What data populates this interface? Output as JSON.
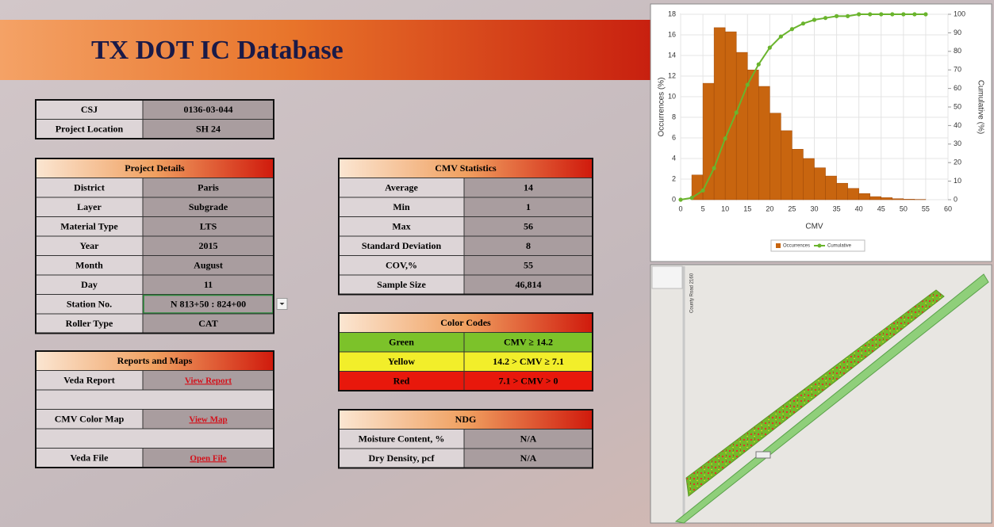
{
  "header": {
    "title": "TX DOT IC Database"
  },
  "project": {
    "rows": [
      [
        "CSJ",
        "0136-03-044"
      ],
      [
        "Project Location",
        "SH 24"
      ]
    ]
  },
  "project_details": {
    "title": "Project Details",
    "rows": [
      [
        "District",
        "Paris"
      ],
      [
        "Layer",
        "Subgrade"
      ],
      [
        "Material Type",
        "LTS"
      ],
      [
        "Year",
        "2015"
      ],
      [
        "Month",
        "August"
      ],
      [
        "Day",
        "11"
      ],
      [
        "Station No.",
        "N 813+50 : 824+00"
      ],
      [
        "Roller Type",
        "CAT"
      ]
    ]
  },
  "reports_and_maps": {
    "title": "Reports and Maps",
    "rows": [
      [
        "Veda Report",
        "View Report"
      ],
      [
        "CMV Color Map",
        "View Map"
      ],
      [
        "Veda File",
        "Open File"
      ]
    ]
  },
  "cmv_statistics": {
    "title": "CMV Statistics",
    "rows": [
      [
        "Average",
        "14"
      ],
      [
        "Min",
        "1"
      ],
      [
        "Max",
        "56"
      ],
      [
        "Standard Deviation",
        "8"
      ],
      [
        "COV,%",
        "55"
      ],
      [
        "Sample Size",
        "46,814"
      ]
    ]
  },
  "color_codes": {
    "title": "Color Codes",
    "rows": [
      [
        "Green",
        "CMV ≥ 14.2"
      ],
      [
        "Yellow",
        "14.2 > CMV ≥ 7.1"
      ],
      [
        "Red",
        "7.1 > CMV > 0"
      ]
    ],
    "colors": [
      "#7cc22a",
      "#f2ee2a",
      "#e8180c"
    ]
  },
  "ndg": {
    "title": "NDG",
    "rows": [
      [
        "Moisture Content, %",
        "N/A"
      ],
      [
        "Dry Density, pcf",
        "N/A"
      ]
    ]
  },
  "chart_data": {
    "type": "histogram",
    "x_label": "CMV",
    "y_label": "Occurrences (%)",
    "y2_label": "Cumulative (%)",
    "bins": [
      2.5,
      5,
      7.5,
      10,
      12.5,
      15,
      17.5,
      20,
      22.5,
      25,
      27.5,
      30,
      32.5,
      35,
      37.5,
      40,
      42.5,
      45,
      47.5,
      50,
      52.5,
      55
    ],
    "series": [
      {
        "name": "Occurrences",
        "color": "#c8650f",
        "values": [
          2.4,
          11.3,
          16.7,
          16.3,
          14.3,
          12.6,
          11,
          8.4,
          6.7,
          4.9,
          4,
          3.1,
          2.3,
          1.6,
          1.1,
          0.6,
          0.3,
          0.2,
          0.1,
          0.05,
          0.03
        ]
      },
      {
        "name": "Cumulative",
        "color": "#6ab42d",
        "axis": "y2",
        "x": [
          0,
          2.5,
          5,
          7.5,
          10,
          12.5,
          15,
          17.5,
          20,
          22.5,
          25,
          27.5,
          30,
          32.5,
          35,
          37.5,
          40,
          42.5,
          45,
          47.5,
          50,
          52.5,
          55
        ],
        "values": [
          0,
          1,
          5,
          17,
          33,
          47,
          62,
          73,
          82,
          88,
          92,
          95,
          97,
          98,
          99,
          99,
          100,
          100,
          100,
          100,
          100,
          100,
          100
        ]
      }
    ],
    "xlim": [
      0,
      60
    ],
    "xticks": [
      0,
      5,
      10,
      15,
      20,
      25,
      30,
      35,
      40,
      45,
      50,
      55,
      60
    ],
    "ylim": [
      0,
      18
    ],
    "yticks": [
      0,
      2,
      4,
      6,
      8,
      10,
      12,
      14,
      16,
      18
    ],
    "y2lim": [
      0,
      100
    ],
    "y2ticks": [
      0,
      10,
      20,
      30,
      40,
      50,
      60,
      70,
      80,
      90,
      100
    ]
  },
  "map": {
    "road_label": "County Road 2160"
  }
}
